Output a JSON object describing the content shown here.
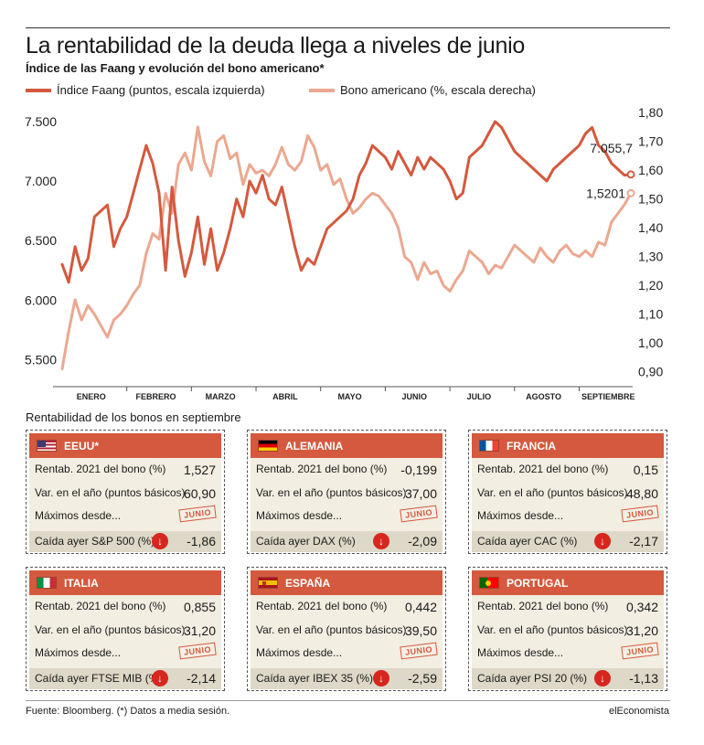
{
  "title": "La rentabilidad de la deuda llega a niveles de junio",
  "subtitle": "Índice de las Faang y evolución del bono americano*",
  "legend": {
    "faang": "Índice Faang (puntos, escala izquierda)",
    "bond": "Bono americano (%, escala derecha)"
  },
  "colors": {
    "faang": "#d4593e",
    "bond": "#eba890",
    "header": "#d4593e",
    "body": "#f2eee1",
    "down": "#d7261e"
  },
  "chart_data": {
    "type": "line",
    "x_categories": [
      "ENERO",
      "FEBRERO",
      "MARZO",
      "ABRIL",
      "MAYO",
      "JUNIO",
      "JULIO",
      "AGOSTO",
      "SEPTIEMBRE"
    ],
    "left_axis": {
      "ticks": [
        "5.500",
        "6.000",
        "6.500",
        "7.000",
        "7.500"
      ],
      "tick_values": [
        5500,
        6000,
        6500,
        7000,
        7500
      ],
      "ylim": [
        5350,
        7600
      ]
    },
    "right_axis": {
      "ticks": [
        "0,90",
        "1,00",
        "1,10",
        "1,20",
        "1,30",
        "1,40",
        "1,50",
        "1,60",
        "1,70",
        "1,80"
      ],
      "tick_values": [
        0.9,
        1.0,
        1.1,
        1.2,
        1.3,
        1.4,
        1.5,
        1.6,
        1.7,
        1.8
      ],
      "ylim": [
        0.88,
        1.81
      ]
    },
    "series": [
      {
        "name": "Índice Faang (puntos, escala izquierda)",
        "axis": "left",
        "x": [
          0,
          0.1,
          0.2,
          0.3,
          0.4,
          0.5,
          0.6,
          0.7,
          0.8,
          0.9,
          1.0,
          1.1,
          1.2,
          1.3,
          1.4,
          1.5,
          1.6,
          1.7,
          1.8,
          1.9,
          2.0,
          2.1,
          2.2,
          2.3,
          2.4,
          2.5,
          2.6,
          2.7,
          2.8,
          2.9,
          3.0,
          3.1,
          3.2,
          3.3,
          3.4,
          3.5,
          3.6,
          3.7,
          3.8,
          3.9,
          4.0,
          4.1,
          4.2,
          4.3,
          4.4,
          4.5,
          4.6,
          4.7,
          4.8,
          4.9,
          5.0,
          5.1,
          5.2,
          5.3,
          5.4,
          5.5,
          5.6,
          5.7,
          5.8,
          5.9,
          6.0,
          6.1,
          6.2,
          6.3,
          6.4,
          6.5,
          6.6,
          6.7,
          6.8,
          6.9,
          7.0,
          7.1,
          7.2,
          7.3,
          7.4,
          7.5,
          7.6,
          7.7,
          7.8,
          7.9,
          8.0,
          8.1,
          8.2,
          8.3,
          8.4,
          8.5,
          8.6,
          8.7,
          8.8
        ],
        "values": [
          6300,
          6150,
          6450,
          6250,
          6350,
          6700,
          6750,
          6800,
          6450,
          6600,
          6700,
          6900,
          7100,
          7300,
          7150,
          6900,
          6250,
          6950,
          6500,
          6200,
          6400,
          6700,
          6300,
          6600,
          6250,
          6400,
          6600,
          6850,
          6700,
          7000,
          6900,
          7050,
          6850,
          6800,
          6950,
          6700,
          6450,
          6250,
          6350,
          6300,
          6450,
          6600,
          6650,
          6700,
          6750,
          6850,
          7050,
          7150,
          7300,
          7250,
          7200,
          7100,
          7250,
          7150,
          7050,
          7200,
          7100,
          7200,
          7150,
          7100,
          7000,
          6850,
          6900,
          7200,
          7250,
          7300,
          7400,
          7500,
          7450,
          7350,
          7250,
          7200,
          7150,
          7100,
          7050,
          7000,
          7100,
          7150,
          7200,
          7250,
          7300,
          7400,
          7450,
          7300,
          7250,
          7150,
          7100,
          7050,
          7055.7
        ]
      },
      {
        "name": "Bono americano (%, escala derecha)",
        "axis": "right",
        "x": [
          0,
          0.1,
          0.2,
          0.3,
          0.4,
          0.5,
          0.6,
          0.7,
          0.8,
          0.9,
          1.0,
          1.1,
          1.2,
          1.3,
          1.4,
          1.5,
          1.6,
          1.7,
          1.8,
          1.9,
          2.0,
          2.1,
          2.2,
          2.3,
          2.4,
          2.5,
          2.6,
          2.7,
          2.8,
          2.9,
          3.0,
          3.1,
          3.2,
          3.3,
          3.4,
          3.5,
          3.6,
          3.7,
          3.8,
          3.9,
          4.0,
          4.1,
          4.2,
          4.3,
          4.4,
          4.5,
          4.6,
          4.7,
          4.8,
          4.9,
          5.0,
          5.1,
          5.2,
          5.3,
          5.4,
          5.5,
          5.6,
          5.7,
          5.8,
          5.9,
          6.0,
          6.1,
          6.2,
          6.3,
          6.4,
          6.5,
          6.6,
          6.7,
          6.8,
          6.9,
          7.0,
          7.1,
          7.2,
          7.3,
          7.4,
          7.5,
          7.6,
          7.7,
          7.8,
          7.9,
          8.0,
          8.1,
          8.2,
          8.3,
          8.4,
          8.5,
          8.6,
          8.7,
          8.8
        ],
        "values": [
          0.91,
          1.04,
          1.15,
          1.08,
          1.13,
          1.1,
          1.06,
          1.02,
          1.08,
          1.1,
          1.13,
          1.17,
          1.2,
          1.31,
          1.38,
          1.36,
          1.52,
          1.45,
          1.62,
          1.66,
          1.6,
          1.75,
          1.63,
          1.58,
          1.7,
          1.72,
          1.64,
          1.66,
          1.55,
          1.62,
          1.59,
          1.6,
          1.58,
          1.62,
          1.68,
          1.62,
          1.6,
          1.63,
          1.72,
          1.68,
          1.6,
          1.62,
          1.55,
          1.57,
          1.5,
          1.45,
          1.47,
          1.5,
          1.52,
          1.51,
          1.48,
          1.45,
          1.4,
          1.3,
          1.28,
          1.22,
          1.28,
          1.24,
          1.25,
          1.2,
          1.18,
          1.22,
          1.25,
          1.32,
          1.3,
          1.28,
          1.24,
          1.27,
          1.26,
          1.3,
          1.34,
          1.32,
          1.3,
          1.28,
          1.33,
          1.3,
          1.28,
          1.32,
          1.34,
          1.31,
          1.3,
          1.32,
          1.3,
          1.35,
          1.34,
          1.42,
          1.45,
          1.48,
          1.5201
        ]
      }
    ],
    "annotations": [
      {
        "series": "faang",
        "label": "7.055,7"
      },
      {
        "series": "bond",
        "label": "1,5201"
      }
    ],
    "grid": false
  },
  "section_title": "Rentabilidad de los bonos en septiembre",
  "labels": {
    "rentab": "Rentab. 2021 del bono (%)",
    "var": "Var. en el año (puntos básicos)",
    "max": "Máximos desde...",
    "stamp": "JUNIO"
  },
  "cards": [
    {
      "country": "EEUU*",
      "flag": "us-flag-icon",
      "rentab": "1,527",
      "var": "60,90",
      "caida_label": "Caída ayer S&P 500 (%)",
      "caida": "-1,86"
    },
    {
      "country": "ALEMANIA",
      "flag": "germany-flag-icon",
      "rentab": "-0,199",
      "var": "37,00",
      "caida_label": "Caída ayer DAX (%)",
      "caida": "-2,09"
    },
    {
      "country": "FRANCIA",
      "flag": "france-flag-icon",
      "rentab": "0,15",
      "var": "48,80",
      "caida_label": "Caída ayer CAC (%)",
      "caida": "-2,17"
    },
    {
      "country": "ITALIA",
      "flag": "italy-flag-icon",
      "rentab": "0,855",
      "var": "31,20",
      "caida_label": "Caída ayer FTSE MIB (%)",
      "caida": "-2,14"
    },
    {
      "country": "ESPAÑA",
      "flag": "spain-flag-icon",
      "rentab": "0,442",
      "var": "39,50",
      "caida_label": "Caída ayer IBEX 35 (%)",
      "caida": "-2,59"
    },
    {
      "country": "PORTUGAL",
      "flag": "portugal-flag-icon",
      "rentab": "0,342",
      "var": "31,20",
      "caida_label": "Caída ayer PSI 20 (%)",
      "caida": "-1,13"
    }
  ],
  "footer": {
    "source": "Fuente: Bloomberg. (*) Datos a media sesión.",
    "brand": "elEconomista"
  }
}
